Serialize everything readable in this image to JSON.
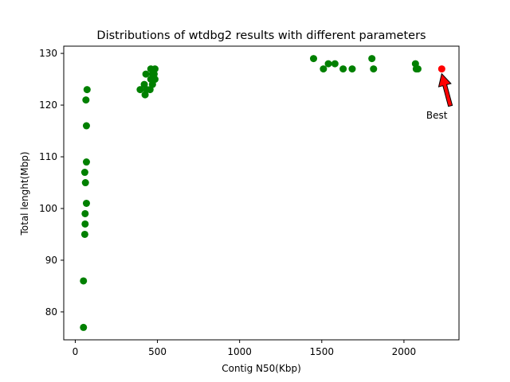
{
  "chart_data": {
    "type": "scatter",
    "title": "Distributions of wtdbg2 results with different parameters",
    "xlabel": "Contig N50(Kbp)",
    "ylabel": "Total lenght(Mbp)",
    "xlim": [
      -70,
      2335
    ],
    "ylim": [
      74.6,
      131.4
    ],
    "xticks": [
      0,
      500,
      1000,
      1500,
      2000
    ],
    "yticks": [
      80,
      90,
      100,
      110,
      120,
      130
    ],
    "grid": false,
    "series": [
      {
        "color": "#008000",
        "points": [
          [
            50,
            77
          ],
          [
            50,
            86
          ],
          [
            58,
            95
          ],
          [
            60,
            97
          ],
          [
            60,
            99
          ],
          [
            68,
            101
          ],
          [
            62,
            105
          ],
          [
            58,
            107
          ],
          [
            68,
            109
          ],
          [
            68,
            116
          ],
          [
            65,
            121
          ],
          [
            72,
            123
          ],
          [
            395,
            123
          ],
          [
            420,
            124
          ],
          [
            425,
            122
          ],
          [
            435,
            123
          ],
          [
            430,
            126
          ],
          [
            455,
            123
          ],
          [
            460,
            125
          ],
          [
            460,
            127
          ],
          [
            470,
            126
          ],
          [
            470,
            124
          ],
          [
            480,
            126
          ],
          [
            485,
            127
          ],
          [
            485,
            125
          ],
          [
            1450,
            129
          ],
          [
            1510,
            127
          ],
          [
            1540,
            128
          ],
          [
            1580,
            128
          ],
          [
            1630,
            127
          ],
          [
            1685,
            127
          ],
          [
            1805,
            129
          ],
          [
            1815,
            127
          ],
          [
            2070,
            128
          ],
          [
            2075,
            127
          ],
          [
            2085,
            127
          ]
        ]
      },
      {
        "color": "#ff0000",
        "points": [
          [
            2230,
            127
          ]
        ]
      }
    ],
    "annotation": {
      "text": "Best",
      "point": [
        2230,
        127
      ],
      "text_position": [
        2200,
        118
      ],
      "arrow_color": "#ff0000"
    }
  }
}
